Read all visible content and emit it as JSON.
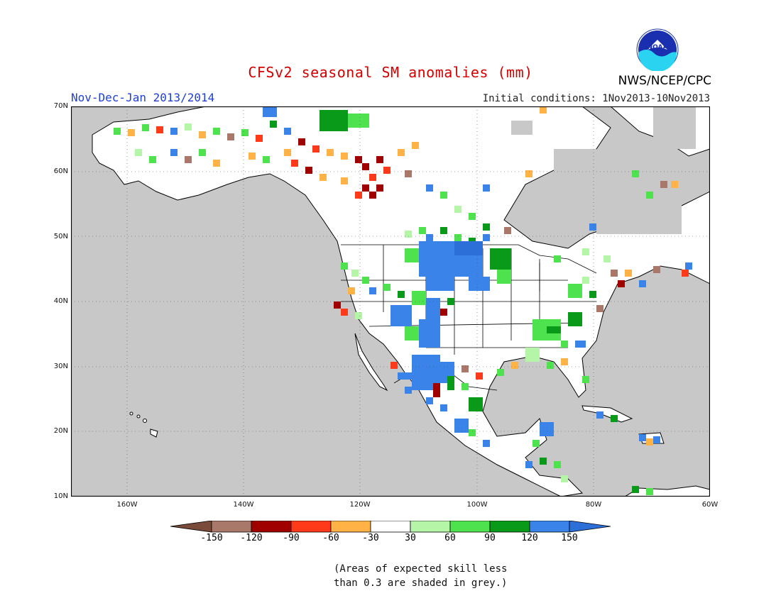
{
  "title": "CFSv2 seasonal SM anomalies (mm)",
  "season": "Nov-Dec-Jan 2013/2014",
  "initial_conditions": "Initial conditions: 1Nov2013-10Nov2013",
  "agency": "NWS/NCEP/CPC",
  "logo_text": "NOAA",
  "lat_labels": [
    "70N",
    "60N",
    "50N",
    "40N",
    "30N",
    "20N",
    "10N"
  ],
  "lon_labels": [
    "160W",
    "140W",
    "120W",
    "100W",
    "80W",
    "60W"
  ],
  "colorbar": {
    "labels": [
      "-150",
      "-120",
      "-90",
      "-60",
      "-30",
      "30",
      "60",
      "90",
      "120",
      "150"
    ],
    "colors": [
      "#7a4b3a",
      "#a9786a",
      "#a00000",
      "#ff3a1a",
      "#ffb347",
      "#ffffff",
      "#b4f5a8",
      "#4fe24f",
      "#0a9a1a",
      "#3a83e8",
      "#2d6fd8"
    ]
  },
  "note_line1": "(Areas of expected skill less",
  "note_line2": "than 0.3 are shaded in grey.)",
  "map_colors": {
    "ocean": "#c8c8c8",
    "land": "#ffffff",
    "low_skill_grey": "#c8c8c8"
  }
}
